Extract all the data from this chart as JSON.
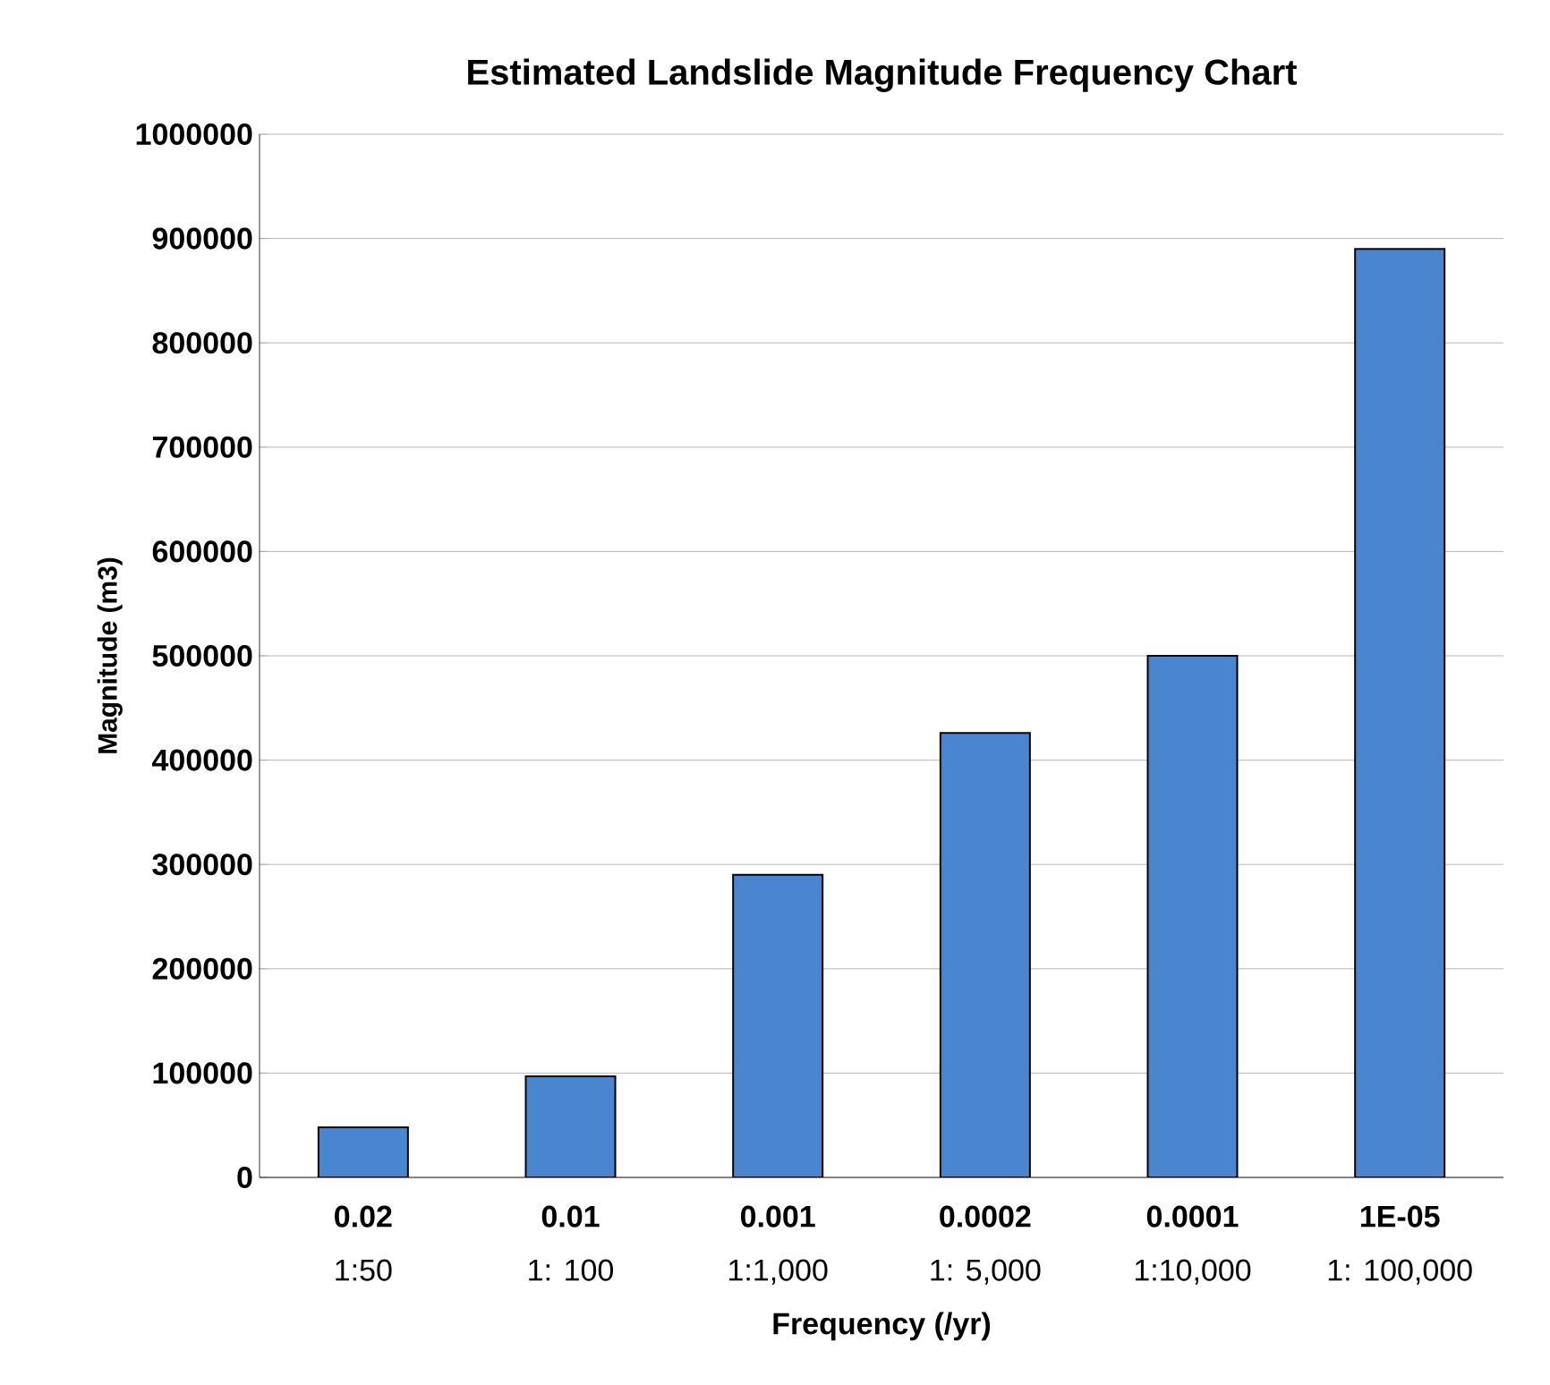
{
  "chart_data": {
    "type": "bar",
    "title": "Estimated Landslide Magnitude Frequency Chart",
    "xlabel": "Frequency (/yr)",
    "ylabel": "Magnitude (m3)",
    "categories": [
      "**0.02**\n1:50",
      "**0.01**\n1: 100",
      "**0.001**\n1:1,000",
      "**0.0002**\n1: 5,000",
      "**0.0001**\n1:10,000",
      "**1E-05**\n1: 100,000"
    ],
    "values": [
      48000,
      97000,
      290000,
      426000,
      500000,
      890000
    ],
    "color": "#4a86d0",
    "ylim": [
      0,
      1000000
    ],
    "yticks": [
      0,
      100000,
      200000,
      300000,
      400000,
      500000,
      600000,
      700000,
      800000,
      900000,
      1000000
    ],
    "grid": "y"
  }
}
